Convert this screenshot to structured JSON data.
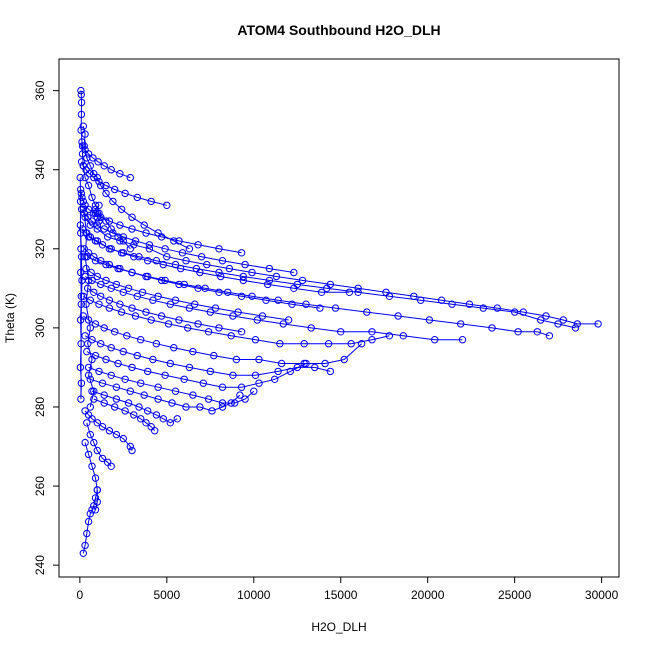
{
  "chart_data": {
    "type": "line",
    "title": "ATOM4 Southbound H2O_DLH",
    "xlabel": "H2O_DLH",
    "ylabel": "Theta (K)",
    "xlim": [
      -1200,
      31000
    ],
    "ylim": [
      237,
      368
    ],
    "x_ticks": [
      0,
      5000,
      10000,
      15000,
      20000,
      25000,
      30000
    ],
    "x_tick_labels": [
      "0",
      "5000",
      "10000",
      "15000",
      "20000",
      "25000",
      "30000"
    ],
    "y_ticks": [
      240,
      260,
      280,
      300,
      320,
      340,
      360
    ],
    "y_tick_labels": [
      "240",
      "260",
      "280",
      "300",
      "320",
      "340",
      "360"
    ],
    "grid": false,
    "legend": "none",
    "series_color": "#0000ff",
    "marker": "open-circle",
    "series": [
      {
        "x": [
          60,
          80,
          100,
          90,
          70,
          120,
          150,
          200,
          300,
          500,
          700,
          900,
          1100,
          1500,
          1800,
          2200,
          2500,
          2900
        ],
        "y": [
          360,
          359,
          357,
          354,
          350,
          347,
          344,
          341,
          338,
          336,
          333,
          331,
          329,
          327,
          325,
          323,
          322,
          320
        ]
      },
      {
        "x": [
          200,
          300,
          250,
          400,
          600,
          800,
          1000,
          1200,
          1500,
          1900,
          2400,
          3000,
          3700,
          4500,
          5400,
          6300
        ],
        "y": [
          351,
          349,
          346,
          343,
          341,
          339,
          338,
          336,
          334,
          332,
          330,
          328,
          326,
          324,
          322,
          320
        ]
      },
      {
        "x": [
          300,
          600,
          1000,
          1600,
          2300,
          3100,
          4000,
          5000,
          6100,
          7300,
          8600,
          9900,
          11300,
          12800,
          14400,
          16000,
          17600,
          19200,
          20800,
          22400,
          24000,
          25500,
          26800,
          27800,
          28600,
          29800
        ],
        "y": [
          328,
          326,
          325,
          323,
          322,
          321,
          320,
          318,
          317,
          316,
          315,
          314,
          313,
          312,
          311,
          310,
          309,
          308,
          307,
          306,
          305,
          304,
          303,
          302,
          301,
          301
        ]
      },
      {
        "x": [
          500,
          1000,
          1700,
          2500,
          3400,
          4400,
          5500,
          6700,
          8000,
          9400,
          10900,
          12500,
          14200,
          16000,
          17800,
          19600,
          21400,
          23200,
          25000,
          26500,
          27500,
          28500
        ],
        "y": [
          323,
          322,
          320,
          319,
          318,
          317,
          316,
          315,
          314,
          313,
          312,
          311,
          310,
          309,
          308,
          307,
          306,
          305,
          304,
          302,
          301,
          300
        ]
      },
      {
        "x": [
          400,
          900,
          1500,
          2200,
          3000,
          3900,
          4900,
          6000,
          7200,
          8500,
          9900,
          11400,
          13000,
          14700,
          16500,
          18300,
          20100,
          21900,
          23700,
          25200,
          26300,
          27000
        ],
        "y": [
          318,
          317,
          316,
          315,
          314,
          313,
          312,
          311,
          310,
          309,
          308,
          307,
          306,
          305,
          304,
          303,
          302,
          301,
          300,
          299,
          299,
          298
        ]
      },
      {
        "x": [
          300,
          700,
          1200,
          1800,
          2500,
          3300,
          4200,
          5200,
          6300,
          7500,
          8800,
          10200,
          11700,
          13300,
          15000,
          16800,
          18600,
          20400,
          22000
        ],
        "y": [
          313,
          312,
          311,
          310,
          309,
          308,
          307,
          306,
          305,
          304,
          303,
          302,
          301,
          300,
          299,
          299,
          298,
          297,
          297
        ]
      },
      {
        "x": [
          200,
          600,
          1100,
          1700,
          2400,
          3200,
          4100,
          5100,
          6200,
          7400,
          8700,
          10100,
          11500,
          12900,
          14300,
          15600,
          16800,
          17800
        ],
        "y": [
          308,
          307,
          306,
          305,
          304,
          303,
          302,
          301,
          300,
          299,
          298,
          297,
          296,
          296,
          296,
          296,
          297,
          298
        ]
      },
      {
        "x": [
          200,
          500,
          900,
          1400,
          2000,
          2700,
          3500,
          4400,
          5400,
          6500,
          7700,
          9000,
          10300,
          11600,
          12900,
          14100,
          15200,
          16200
        ],
        "y": [
          303,
          302,
          301,
          300,
          299,
          298,
          297,
          296,
          295,
          294,
          293,
          292,
          292,
          291,
          291,
          291,
          292,
          296
        ]
      },
      {
        "x": [
          300,
          700,
          1200,
          1800,
          2500,
          3300,
          4200,
          5200,
          6300,
          7500,
          8800,
          10100,
          11400,
          12500,
          13500,
          14400
        ],
        "y": [
          298,
          297,
          296,
          295,
          294,
          293,
          292,
          291,
          290,
          289,
          288,
          288,
          289,
          290,
          290,
          289
        ]
      },
      {
        "x": [
          400,
          900,
          1500,
          2200,
          3000,
          3900,
          4900,
          6000,
          7100,
          8200,
          9300,
          10300,
          11200,
          12100,
          13000
        ],
        "y": [
          294,
          293,
          292,
          291,
          290,
          289,
          288,
          287,
          286,
          285,
          285,
          286,
          287,
          289,
          291
        ]
      },
      {
        "x": [
          500,
          1100,
          1800,
          2600,
          3500,
          4500,
          5500,
          6500,
          7400,
          8200,
          8900,
          9500,
          10000
        ],
        "y": [
          290,
          289,
          288,
          287,
          286,
          285,
          284,
          283,
          282,
          281,
          281,
          282,
          284
        ]
      },
      {
        "x": [
          600,
          1300,
          2100,
          2900,
          3700,
          4500,
          5300,
          6100,
          6900,
          7600,
          8200,
          8700,
          9200
        ],
        "y": [
          287,
          286,
          285,
          284,
          283,
          282,
          281,
          280,
          280,
          279,
          280,
          281,
          283
        ]
      },
      {
        "x": [
          700,
          1400,
          2100,
          2800,
          3400,
          3900,
          4400,
          4800,
          5200,
          5600
        ],
        "y": [
          284,
          283,
          282,
          281,
          280,
          279,
          278,
          277,
          276,
          277
        ]
      },
      {
        "x": [
          800,
          1400,
          2000,
          2600,
          3100,
          3500,
          3800,
          4100,
          4300
        ],
        "y": [
          282,
          281,
          280,
          279,
          278,
          277,
          276,
          275,
          274
        ]
      },
      {
        "x": [
          300,
          500,
          700,
          1000,
          1300,
          1700,
          2100,
          2500,
          2900,
          3000
        ],
        "y": [
          279,
          278,
          277,
          276,
          275,
          274,
          273,
          272,
          270,
          269
        ]
      },
      {
        "x": [
          400,
          600,
          800,
          1000,
          1300,
          1600,
          1800
        ],
        "y": [
          276,
          273,
          271,
          269,
          267,
          266,
          265
        ]
      },
      {
        "x": [
          300,
          500,
          700,
          900,
          1000,
          1000,
          900
        ],
        "y": [
          271,
          268,
          265,
          262,
          259,
          256,
          254
        ]
      },
      {
        "x": [
          200,
          300,
          400,
          500,
          600,
          700,
          800,
          900,
          1000
        ],
        "y": [
          243,
          245,
          248,
          251,
          253,
          254,
          255,
          257,
          259
        ]
      },
      {
        "x": [
          50,
          80,
          120,
          200,
          300,
          500,
          800,
          1200,
          1700,
          2300,
          3000,
          3800,
          4700,
          5700,
          6800,
          8000,
          9300
        ],
        "y": [
          335,
          334,
          333,
          332,
          331,
          330,
          329,
          328,
          327,
          326,
          325,
          324,
          323,
          322,
          321,
          320,
          319
        ]
      },
      {
        "x": [
          100,
          250,
          450,
          700,
          1000,
          1400,
          1900,
          2500,
          3200,
          4000,
          4900,
          5900,
          7000,
          8200,
          9500,
          10900,
          12300
        ],
        "y": [
          330,
          329,
          328,
          327,
          326,
          325,
          324,
          323,
          322,
          321,
          320,
          319,
          318,
          317,
          316,
          315,
          314
        ]
      },
      {
        "x": [
          150,
          350,
          600,
          900,
          1300,
          1800,
          2400,
          3100,
          3900,
          4800,
          5800,
          6900,
          8100,
          9400,
          10800,
          12300,
          13900,
          15500
        ],
        "y": [
          325,
          324,
          323,
          322,
          321,
          320,
          319,
          318,
          317,
          316,
          315,
          314,
          313,
          312,
          311,
          310,
          309,
          309
        ]
      },
      {
        "x": [
          250,
          500,
          800,
          1200,
          1700,
          2300,
          3000,
          3800,
          4700,
          5700,
          6800,
          8000,
          9300,
          10700,
          12200,
          13800
        ],
        "y": [
          320,
          319,
          318,
          317,
          316,
          315,
          314,
          313,
          312,
          311,
          310,
          309,
          308,
          307,
          306,
          305
        ]
      },
      {
        "x": [
          350,
          650,
          1000,
          1500,
          2100,
          2800,
          3600,
          4500,
          5500,
          6600,
          7800,
          9100,
          10500,
          12000
        ],
        "y": [
          315,
          314,
          313,
          312,
          311,
          310,
          309,
          308,
          307,
          306,
          305,
          304,
          303,
          302
        ]
      },
      {
        "x": [
          450,
          800,
          1200,
          1700,
          2300,
          3000,
          3800,
          4700,
          5700,
          6800,
          8000,
          9300
        ],
        "y": [
          310,
          309,
          308,
          307,
          306,
          305,
          304,
          303,
          302,
          301,
          300,
          299
        ]
      },
      {
        "x": [
          100,
          200,
          350,
          550,
          800,
          1100,
          1500,
          2000,
          2600,
          3300,
          4100,
          5000
        ],
        "y": [
          342,
          341,
          340,
          339,
          338,
          337,
          336,
          335,
          334,
          333,
          332,
          331
        ]
      },
      {
        "x": [
          150,
          300,
          500,
          750,
          1050,
          1400,
          1800,
          2300,
          2900
        ],
        "y": [
          346,
          345,
          344,
          343,
          342,
          341,
          340,
          339,
          338
        ]
      },
      {
        "x": [
          20,
          40,
          30,
          60,
          50,
          80,
          40,
          70,
          30,
          90,
          60,
          100,
          50,
          120,
          80
        ],
        "y": [
          338,
          332,
          326,
          320,
          314,
          308,
          302,
          296,
          290,
          286,
          282,
          318,
          324,
          312,
          306
        ]
      },
      {
        "x": [
          200,
          400,
          300,
          500,
          350,
          600,
          450,
          700,
          500,
          800,
          600
        ],
        "y": [
          330,
          324,
          318,
          312,
          306,
          300,
          296,
          292,
          288,
          284,
          280
        ]
      },
      {
        "x": [
          900,
          1000,
          1100,
          1200,
          1000,
          900,
          1100
        ],
        "y": [
          329,
          328,
          327,
          328,
          329,
          330,
          331
        ]
      }
    ]
  }
}
